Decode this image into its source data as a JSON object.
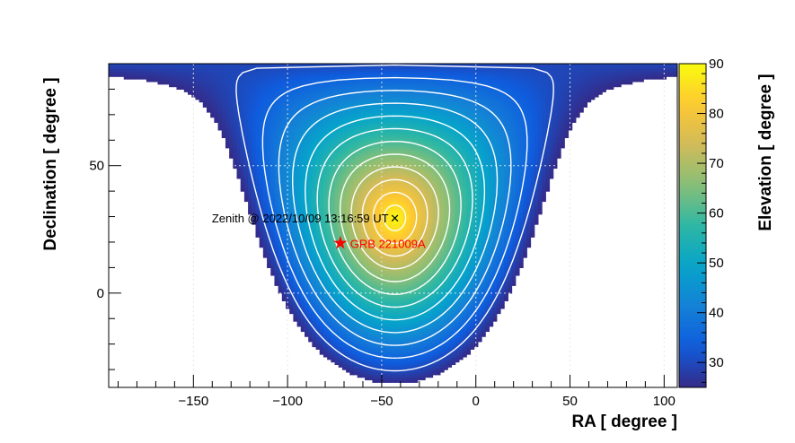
{
  "chart_data": {
    "type": "heatmap",
    "title": "",
    "xlabel": "RA [ degree ]",
    "ylabel": "Declination [ degree ]",
    "zlabel": "Elevation [ degree ]",
    "xlim": [
      -195,
      107
    ],
    "ylim": [
      -37,
      90
    ],
    "zlim": [
      25,
      90
    ],
    "x_ticks": [
      -150,
      -100,
      -50,
      0,
      50,
      100
    ],
    "y_ticks": [
      0,
      50
    ],
    "z_ticks": [
      30,
      40,
      50,
      60,
      70,
      80,
      90
    ],
    "contour_levels": [
      30,
      35,
      40,
      45,
      50,
      55,
      60,
      65,
      70,
      75,
      80,
      85
    ],
    "colormap": [
      "#352a87",
      "#0f5cdd",
      "#1481d6",
      "#06a4ca",
      "#2eb7a4",
      "#87bf77",
      "#d1bb59",
      "#fec832",
      "#f9fb0e"
    ],
    "grid": true,
    "zenith": {
      "ra": -43,
      "dec": 29.5,
      "label": "Zenith @ 2022/10/09 13:16:59 UT"
    },
    "source": {
      "ra": -72,
      "dec": 19.8,
      "label": "GRB 221009A",
      "color": "#ff0000"
    }
  }
}
